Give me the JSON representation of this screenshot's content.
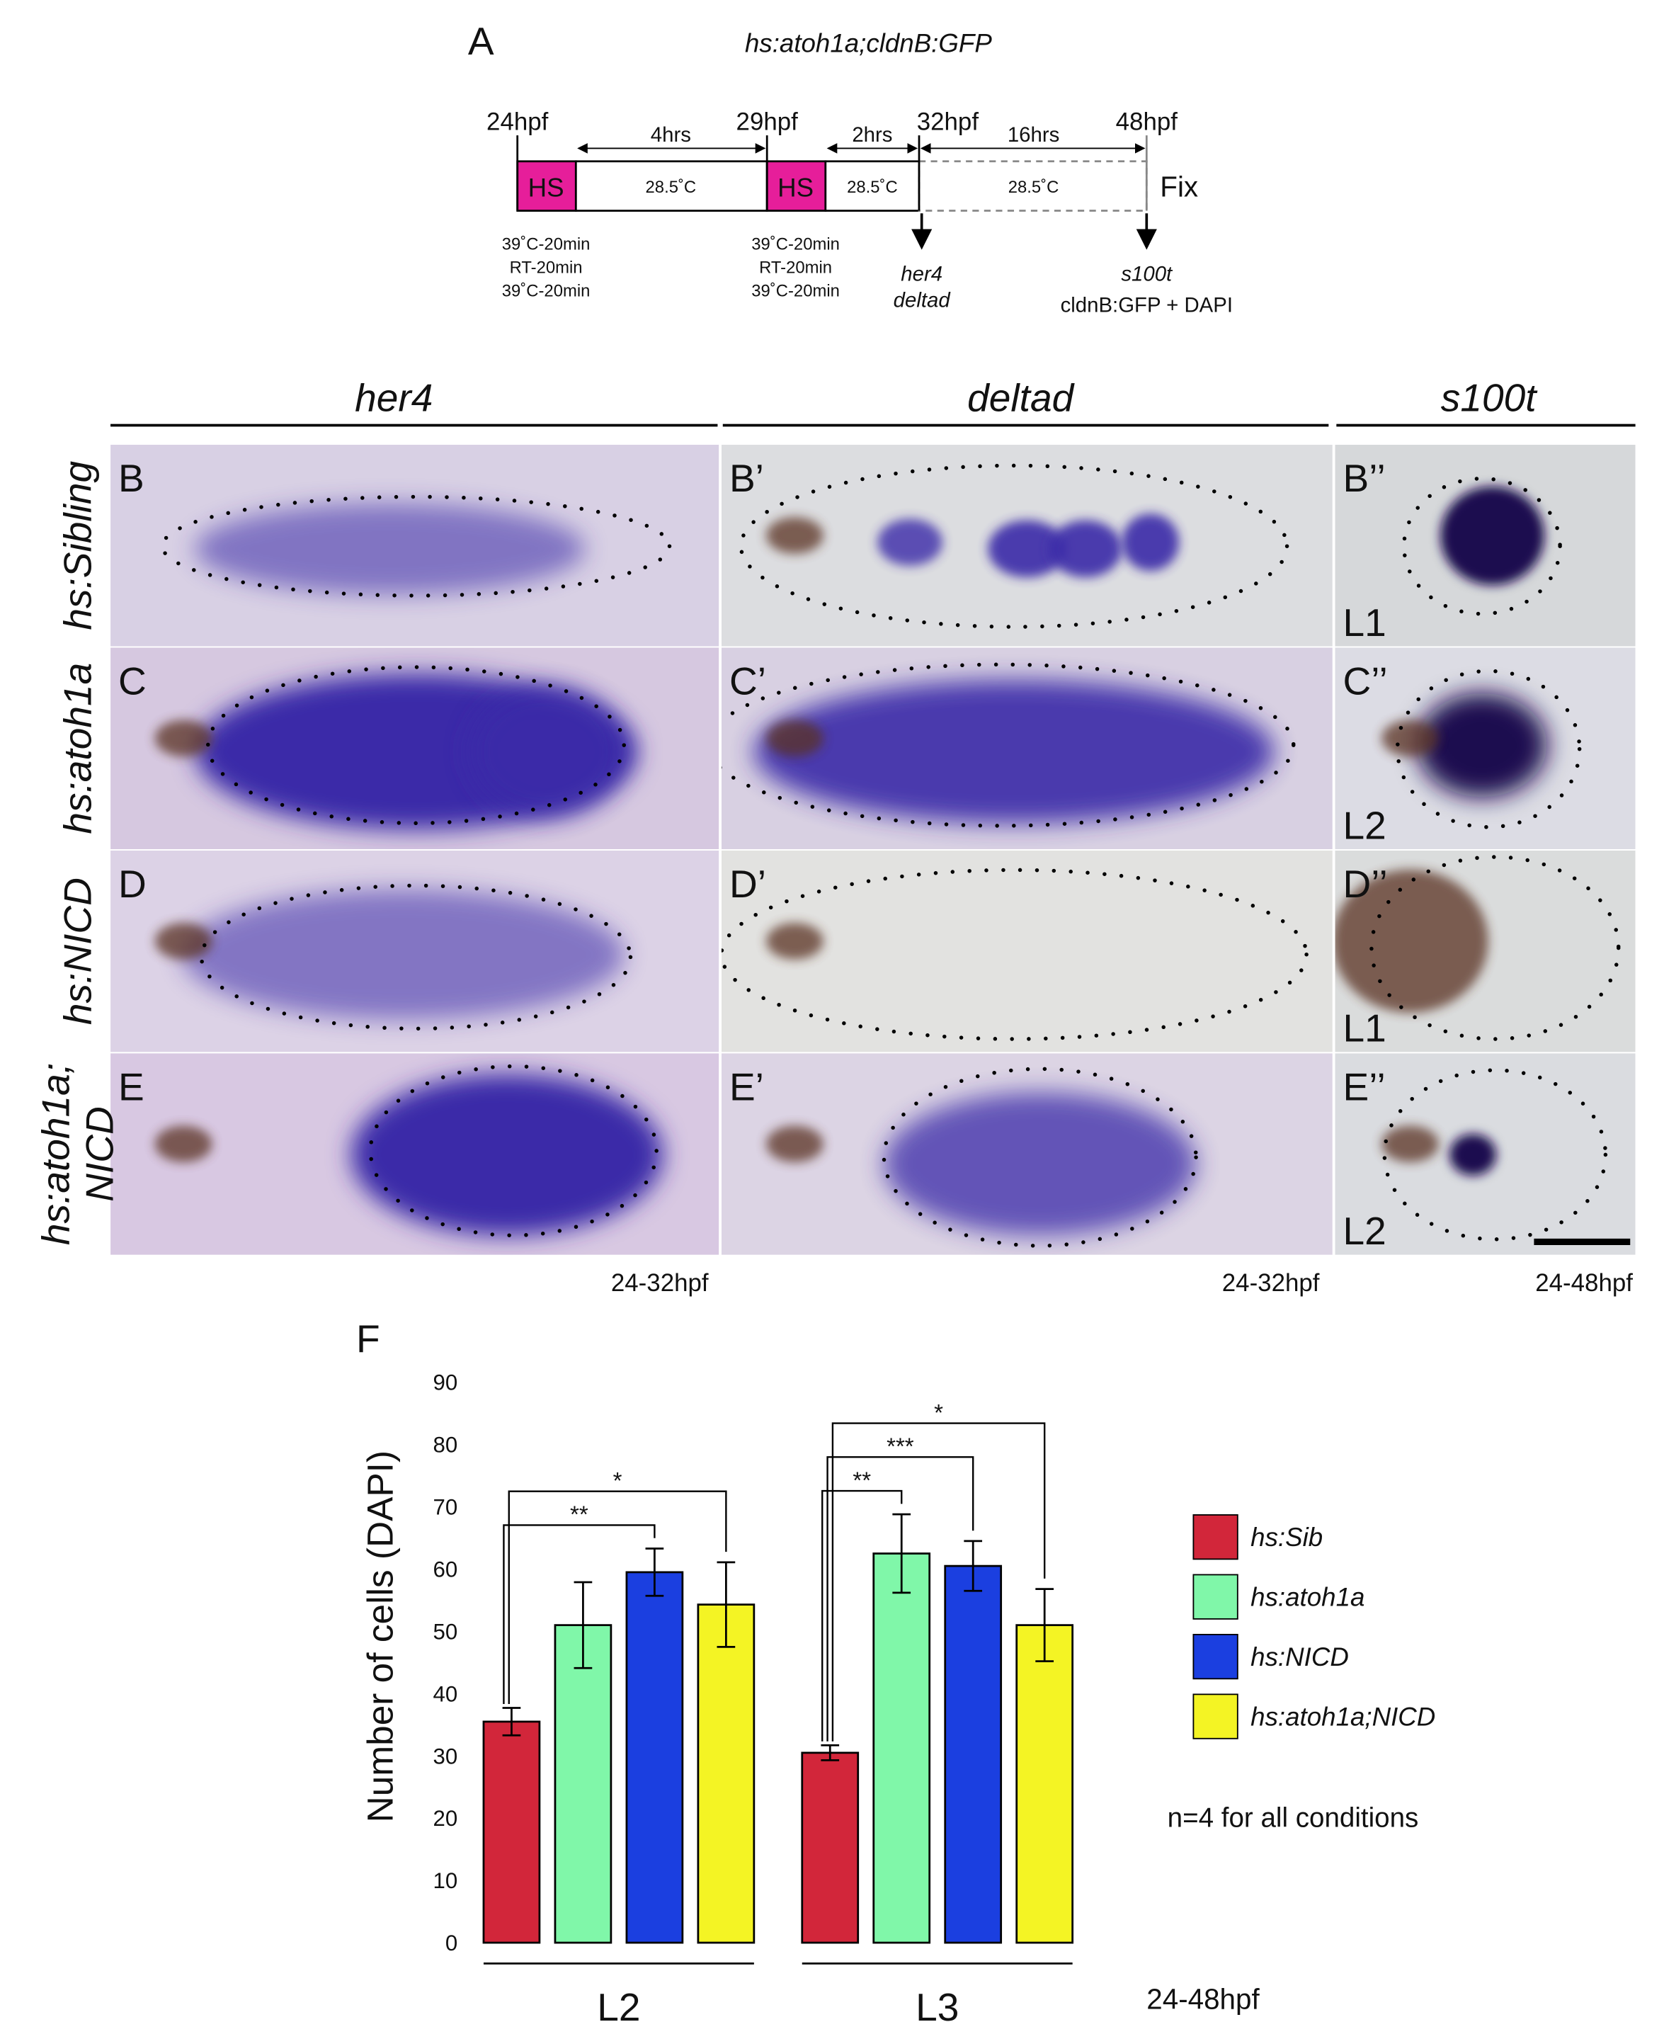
{
  "panel_a": {
    "label": "A",
    "title": "hs:atoh1a;cldnB:GFP",
    "times": [
      "24hpf",
      "29hpf",
      "32hpf",
      "48hpf"
    ],
    "durations": [
      "4hrs",
      "2hrs",
      "16hrs"
    ],
    "temperatures": [
      "28.5˚C",
      "28.5˚C",
      "28.5˚C"
    ],
    "heat_shocks": [
      "HS",
      "HS"
    ],
    "protocols": [
      [
        "39˚C-20min",
        "RT-20min",
        "39˚C-20min"
      ],
      [
        "39˚C-20min",
        "RT-20min",
        "39˚C-20min"
      ]
    ],
    "fix": "Fix",
    "probes_32hpf": [
      "her4",
      "deltad"
    ],
    "probes_48hpf": [
      "s100t",
      "cldnB:GFP + DAPI"
    ]
  },
  "panels": {
    "columns": [
      "her4",
      "deltad",
      "s100t"
    ],
    "rows": [
      [
        "hs:Sibling"
      ],
      [
        "hs:atoh1a"
      ],
      [
        "hs:NICD"
      ],
      [
        "hs:atoh1a;",
        "NICD"
      ]
    ],
    "labels": [
      [
        "B",
        "B’",
        "B’’"
      ],
      [
        "C",
        "C’",
        "C’’"
      ],
      [
        "D",
        "D’",
        "D’’"
      ],
      [
        "E",
        "E’",
        "E’’"
      ]
    ],
    "lateral_lines": [
      "L1",
      "L2",
      "L1",
      "L2"
    ],
    "stages": [
      "24-32hpf",
      "24-32hpf",
      "24-48hpf"
    ]
  },
  "chart_data": {
    "type": "bar",
    "label": "F",
    "ylabel": "Number of cells (DAPI)",
    "categories": [
      "L2",
      "L3"
    ],
    "series": [
      {
        "name": "hs:Sib",
        "color": "#d2263a",
        "values": [
          35.5,
          30.5
        ],
        "errors": [
          2.2,
          1.2
        ]
      },
      {
        "name": "hs:atoh1a",
        "color": "#80f7a9",
        "values": [
          51,
          62.5
        ],
        "errors": [
          6.9,
          6.3
        ]
      },
      {
        "name": "hs:NICD",
        "color": "#1b3fe0",
        "values": [
          59.5,
          60.5
        ],
        "errors": [
          3.8,
          4
        ]
      },
      {
        "name": "hs:atoh1a;NICD",
        "color": "#f4f424",
        "values": [
          54.3,
          51
        ],
        "errors": [
          6.8,
          5.8
        ]
      }
    ],
    "ylim": [
      0,
      90
    ],
    "yticks": [
      0,
      10,
      20,
      30,
      40,
      50,
      60,
      70,
      80,
      90
    ],
    "significance": [
      {
        "category": 0,
        "from_series": 0,
        "to_series": 2,
        "label": "**"
      },
      {
        "category": 0,
        "from_series": 0,
        "to_series": 3,
        "label": "*"
      },
      {
        "category": 1,
        "from_series": 0,
        "to_series": 1,
        "label": "**"
      },
      {
        "category": 1,
        "from_series": 0,
        "to_series": 2,
        "label": "***"
      },
      {
        "category": 1,
        "from_series": 0,
        "to_series": 3,
        "label": "*"
      }
    ],
    "annotations": [
      "n=4 for all conditions",
      "24-48hpf"
    ]
  }
}
